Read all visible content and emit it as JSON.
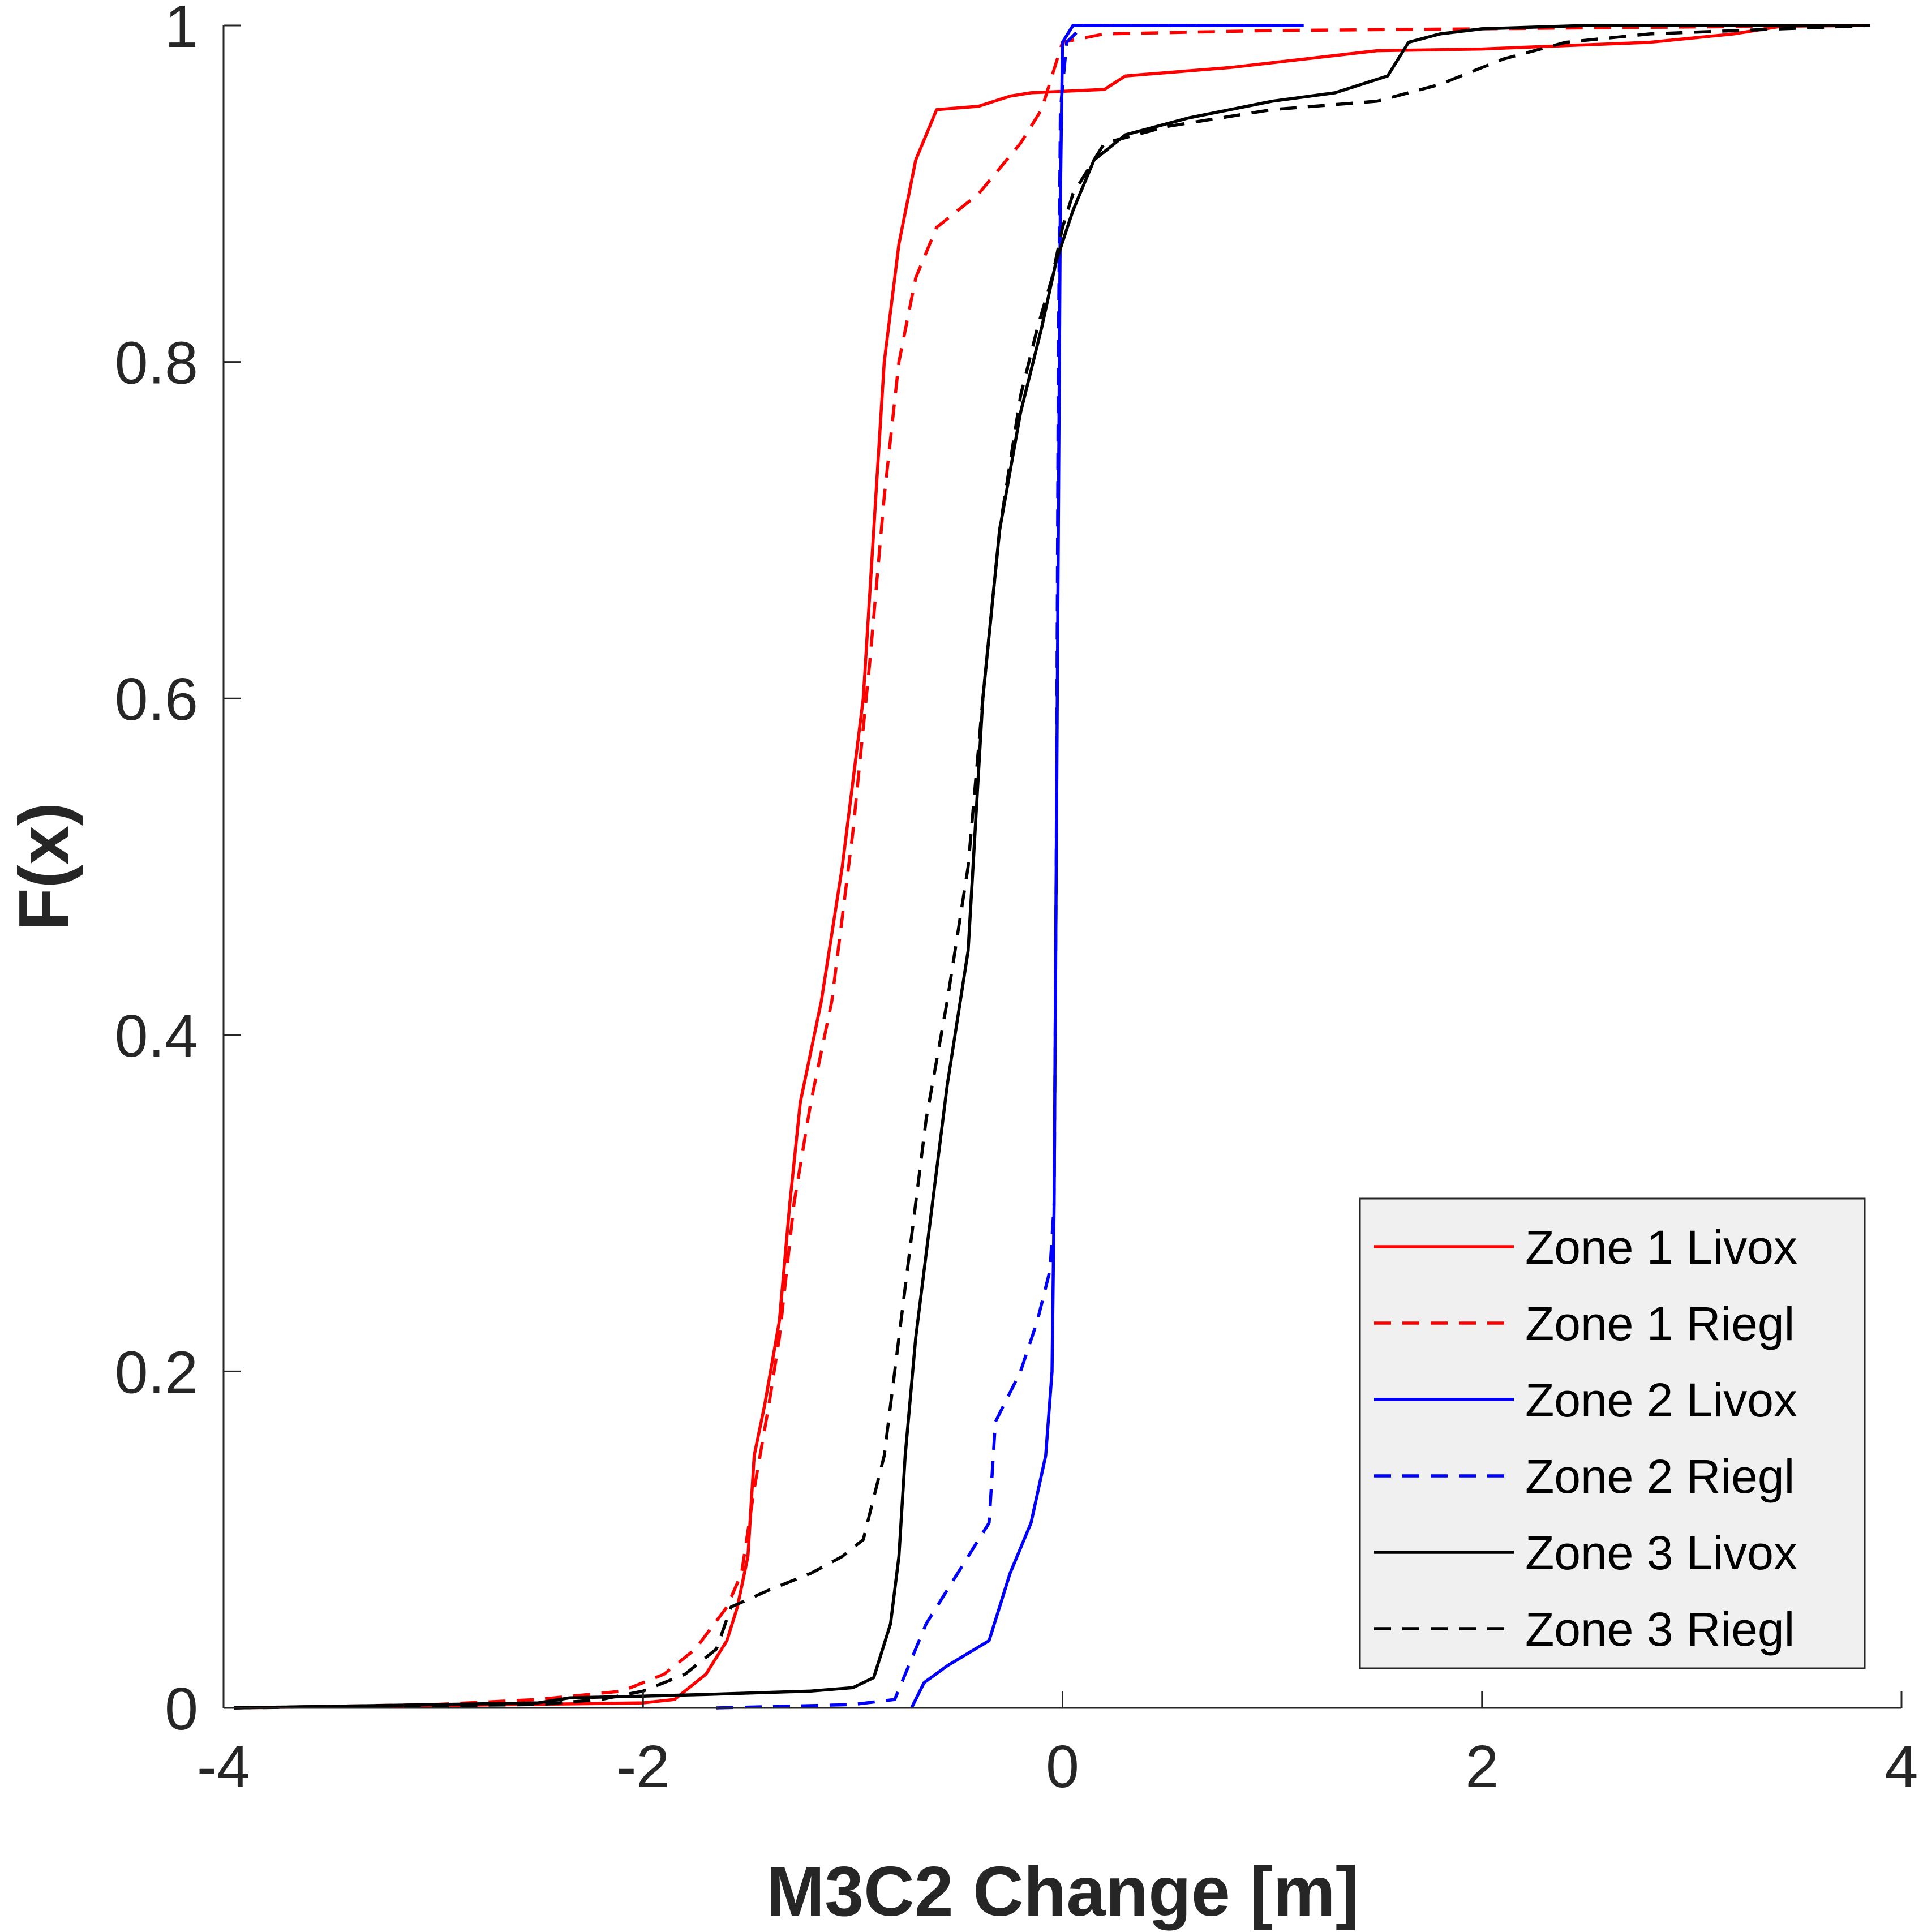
{
  "chart_data": {
    "type": "line",
    "title": "",
    "xlabel": "M3C2 Change [m]",
    "ylabel": "F(x)",
    "xlim": [
      -4,
      4
    ],
    "ylim": [
      0,
      1
    ],
    "x_ticks": [
      {
        "value": -4,
        "label": "-4"
      },
      {
        "value": -2,
        "label": "-2"
      },
      {
        "value": 0,
        "label": "0"
      },
      {
        "value": 2,
        "label": "2"
      },
      {
        "value": 4,
        "label": "4"
      }
    ],
    "y_ticks": [
      {
        "value": 0,
        "label": "0"
      },
      {
        "value": 0.2,
        "label": "0.2"
      },
      {
        "value": 0.4,
        "label": "0.4"
      },
      {
        "value": 0.6,
        "label": "0.6"
      },
      {
        "value": 0.8,
        "label": "0.8"
      },
      {
        "value": 1,
        "label": "1"
      }
    ],
    "grid": false,
    "legend_position": "bottom-right",
    "series": [
      {
        "name": "Zone 1 Livox",
        "color": "#ff0000",
        "dash": "solid",
        "points": [
          [
            -3.95,
            0
          ],
          [
            -2.6,
            0.002
          ],
          [
            -2.0,
            0.003
          ],
          [
            -1.85,
            0.005
          ],
          [
            -1.7,
            0.02
          ],
          [
            -1.6,
            0.04
          ],
          [
            -1.55,
            0.06
          ],
          [
            -1.5,
            0.09
          ],
          [
            -1.47,
            0.15
          ],
          [
            -1.42,
            0.18
          ],
          [
            -1.35,
            0.23
          ],
          [
            -1.3,
            0.3
          ],
          [
            -1.25,
            0.36
          ],
          [
            -1.15,
            0.42
          ],
          [
            -1.05,
            0.5
          ],
          [
            -0.95,
            0.6
          ],
          [
            -0.9,
            0.7
          ],
          [
            -0.85,
            0.8
          ],
          [
            -0.78,
            0.87
          ],
          [
            -0.7,
            0.92
          ],
          [
            -0.6,
            0.95
          ],
          [
            -0.4,
            0.952
          ],
          [
            -0.25,
            0.958
          ],
          [
            -0.15,
            0.96
          ],
          [
            0.2,
            0.962
          ],
          [
            0.3,
            0.97
          ],
          [
            0.8,
            0.975
          ],
          [
            1.5,
            0.985
          ],
          [
            2.0,
            0.986
          ],
          [
            2.8,
            0.99
          ],
          [
            3.2,
            0.995
          ],
          [
            3.45,
            1.0
          ],
          [
            3.85,
            1.0
          ]
        ]
      },
      {
        "name": "Zone 1 Riegl",
        "color": "#ff0000",
        "dash": "dashed",
        "points": [
          [
            -3.95,
            0
          ],
          [
            -3.0,
            0.002
          ],
          [
            -2.5,
            0.005
          ],
          [
            -2.1,
            0.01
          ],
          [
            -1.9,
            0.02
          ],
          [
            -1.75,
            0.035
          ],
          [
            -1.6,
            0.06
          ],
          [
            -1.53,
            0.08
          ],
          [
            -1.47,
            0.13
          ],
          [
            -1.4,
            0.18
          ],
          [
            -1.35,
            0.22
          ],
          [
            -1.28,
            0.3
          ],
          [
            -1.2,
            0.36
          ],
          [
            -1.1,
            0.42
          ],
          [
            -1.0,
            0.52
          ],
          [
            -0.92,
            0.62
          ],
          [
            -0.85,
            0.72
          ],
          [
            -0.78,
            0.8
          ],
          [
            -0.7,
            0.85
          ],
          [
            -0.6,
            0.88
          ],
          [
            -0.4,
            0.9
          ],
          [
            -0.2,
            0.93
          ],
          [
            -0.1,
            0.95
          ],
          [
            0.0,
            0.99
          ],
          [
            0.2,
            0.995
          ],
          [
            1.0,
            0.997
          ],
          [
            2.0,
            0.998
          ],
          [
            3.85,
            1.0
          ]
        ]
      },
      {
        "name": "Zone 2 Livox",
        "color": "#0000ff",
        "dash": "solid",
        "points": [
          [
            -0.72,
            0
          ],
          [
            -0.66,
            0.015
          ],
          [
            -0.55,
            0.025
          ],
          [
            -0.35,
            0.04
          ],
          [
            -0.3,
            0.06
          ],
          [
            -0.25,
            0.08
          ],
          [
            -0.15,
            0.11
          ],
          [
            -0.08,
            0.15
          ],
          [
            -0.05,
            0.2
          ],
          [
            -0.04,
            0.3
          ],
          [
            -0.03,
            0.5
          ],
          [
            -0.02,
            0.7
          ],
          [
            -0.01,
            0.9
          ],
          [
            0.0,
            0.99
          ],
          [
            0.05,
            1.0
          ],
          [
            1.15,
            1.0
          ]
        ]
      },
      {
        "name": "Zone 2 Riegl",
        "color": "#0000ff",
        "dash": "dashed",
        "points": [
          [
            -1.65,
            0
          ],
          [
            -1.0,
            0.002
          ],
          [
            -0.8,
            0.005
          ],
          [
            -0.75,
            0.02
          ],
          [
            -0.65,
            0.05
          ],
          [
            -0.55,
            0.07
          ],
          [
            -0.45,
            0.09
          ],
          [
            -0.35,
            0.11
          ],
          [
            -0.32,
            0.17
          ],
          [
            -0.2,
            0.2
          ],
          [
            -0.12,
            0.23
          ],
          [
            -0.06,
            0.26
          ],
          [
            -0.04,
            0.3
          ],
          [
            -0.03,
            0.5
          ],
          [
            -0.02,
            0.8
          ],
          [
            -0.01,
            0.95
          ],
          [
            0.02,
            0.99
          ],
          [
            0.1,
            1.0
          ],
          [
            1.15,
            1.0
          ]
        ]
      },
      {
        "name": "Zone 3 Livox",
        "color": "#000000",
        "dash": "solid",
        "points": [
          [
            -3.95,
            0
          ],
          [
            -2.5,
            0.003
          ],
          [
            -2.35,
            0.006
          ],
          [
            -2.0,
            0.007
          ],
          [
            -1.7,
            0.008
          ],
          [
            -1.2,
            0.01
          ],
          [
            -1.0,
            0.012
          ],
          [
            -0.9,
            0.018
          ],
          [
            -0.82,
            0.05
          ],
          [
            -0.78,
            0.09
          ],
          [
            -0.75,
            0.15
          ],
          [
            -0.7,
            0.22
          ],
          [
            -0.62,
            0.3
          ],
          [
            -0.55,
            0.37
          ],
          [
            -0.45,
            0.45
          ],
          [
            -0.38,
            0.6
          ],
          [
            -0.3,
            0.7
          ],
          [
            -0.2,
            0.77
          ],
          [
            -0.1,
            0.82
          ],
          [
            -0.03,
            0.86
          ],
          [
            0.05,
            0.89
          ],
          [
            0.15,
            0.92
          ],
          [
            0.3,
            0.935
          ],
          [
            0.6,
            0.945
          ],
          [
            1.0,
            0.955
          ],
          [
            1.3,
            0.96
          ],
          [
            1.55,
            0.97
          ],
          [
            1.65,
            0.99
          ],
          [
            1.8,
            0.995
          ],
          [
            2.0,
            0.998
          ],
          [
            2.5,
            1.0
          ],
          [
            3.85,
            1.0
          ]
        ]
      },
      {
        "name": "Zone 3 Riegl",
        "color": "#000000",
        "dash": "dashed",
        "points": [
          [
            -3.95,
            0
          ],
          [
            -2.5,
            0.002
          ],
          [
            -2.2,
            0.005
          ],
          [
            -2.0,
            0.01
          ],
          [
            -1.8,
            0.02
          ],
          [
            -1.65,
            0.035
          ],
          [
            -1.58,
            0.06
          ],
          [
            -1.4,
            0.07
          ],
          [
            -1.2,
            0.08
          ],
          [
            -1.05,
            0.09
          ],
          [
            -0.95,
            0.1
          ],
          [
            -0.85,
            0.15
          ],
          [
            -0.75,
            0.25
          ],
          [
            -0.65,
            0.35
          ],
          [
            -0.55,
            0.42
          ],
          [
            -0.45,
            0.5
          ],
          [
            -0.38,
            0.6
          ],
          [
            -0.3,
            0.7
          ],
          [
            -0.2,
            0.78
          ],
          [
            -0.12,
            0.82
          ],
          [
            -0.05,
            0.85
          ],
          [
            0.0,
            0.88
          ],
          [
            0.05,
            0.9
          ],
          [
            0.2,
            0.93
          ],
          [
            0.5,
            0.94
          ],
          [
            1.0,
            0.95
          ],
          [
            1.5,
            0.955
          ],
          [
            1.8,
            0.965
          ],
          [
            2.1,
            0.98
          ],
          [
            2.4,
            0.99
          ],
          [
            2.8,
            0.995
          ],
          [
            3.85,
            1.0
          ]
        ]
      }
    ]
  }
}
